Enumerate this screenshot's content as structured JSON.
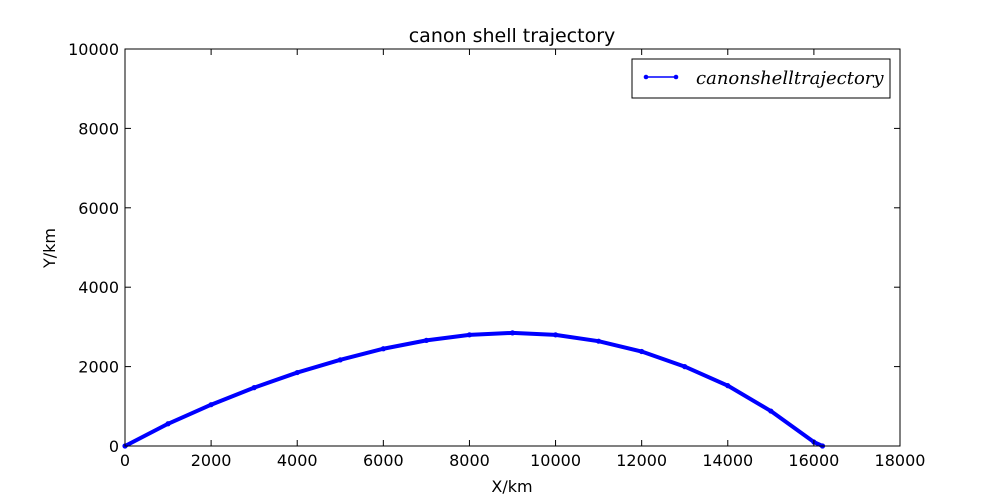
{
  "chart_data": {
    "type": "line",
    "title": "canon shell trajectory",
    "xlabel": "X/km",
    "ylabel": "Y/km",
    "xlim": [
      0,
      18000
    ],
    "ylim": [
      0,
      10000
    ],
    "xticks": [
      "0",
      "2000",
      "4000",
      "6000",
      "8000",
      "10000",
      "12000",
      "14000",
      "16000",
      "18000"
    ],
    "yticks": [
      "0",
      "2000",
      "4000",
      "6000",
      "8000",
      "10000"
    ],
    "grid": false,
    "legend_position": "top-right",
    "series": [
      {
        "name": "canonshelltrajectory",
        "color": "#0000ff",
        "marker": "dot",
        "x": [
          0,
          1000,
          2000,
          3000,
          4000,
          5000,
          6000,
          7000,
          8000,
          9000,
          10000,
          11000,
          12000,
          13000,
          14000,
          15000,
          16000,
          16200
        ],
        "y": [
          0,
          560,
          1040,
          1470,
          1850,
          2170,
          2450,
          2660,
          2800,
          2850,
          2800,
          2640,
          2380,
          2000,
          1520,
          880,
          100,
          0
        ]
      }
    ]
  }
}
